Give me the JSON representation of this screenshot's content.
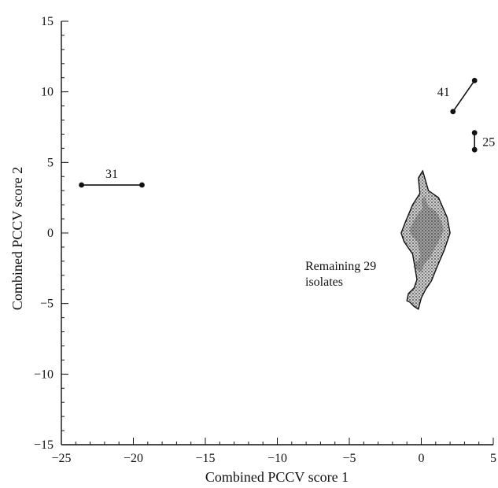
{
  "chart_data": {
    "type": "scatter",
    "title": "",
    "xlabel": "Combined PCCV score 1",
    "ylabel": "Combined PCCV score 2",
    "xlim": [
      -25,
      5
    ],
    "ylim": [
      -15,
      15
    ],
    "xticks": [
      -25,
      -20,
      -15,
      -10,
      -5,
      0,
      5
    ],
    "yticks": [
      -15,
      -10,
      -5,
      0,
      5,
      10,
      15
    ],
    "xtick_labels": [
      "−25",
      "−20",
      "−15",
      "−10",
      "−5",
      "0",
      "5"
    ],
    "ytick_labels": [
      "15",
      "10",
      "5",
      "0",
      "−5",
      "−10",
      "−15"
    ],
    "grid": false,
    "segments": [
      {
        "label": "31",
        "points": [
          [
            -23.6,
            3.4
          ],
          [
            -19.4,
            3.4
          ]
        ]
      },
      {
        "label": "41",
        "points": [
          [
            2.2,
            8.6
          ],
          [
            3.7,
            10.8
          ]
        ]
      },
      {
        "label": "25",
        "points": [
          [
            3.7,
            7.1
          ],
          [
            3.7,
            5.9
          ]
        ]
      }
    ],
    "cluster": {
      "label_line1": "Remaining 29",
      "label_line2": "isolates",
      "outline": [
        [
          0.1,
          4.4
        ],
        [
          0.5,
          3.0
        ],
        [
          1.2,
          2.5
        ],
        [
          1.8,
          1.1
        ],
        [
          2.0,
          0.0
        ],
        [
          1.6,
          -1.2
        ],
        [
          1.1,
          -2.4
        ],
        [
          0.7,
          -3.4
        ],
        [
          0.3,
          -4.0
        ],
        [
          0.0,
          -4.6
        ],
        [
          -0.2,
          -5.4
        ],
        [
          -0.5,
          -5.2
        ],
        [
          -0.8,
          -4.9
        ],
        [
          -1.0,
          -4.8
        ],
        [
          -0.9,
          -4.3
        ],
        [
          -0.5,
          -3.9
        ],
        [
          -0.3,
          -3.3
        ],
        [
          -0.6,
          -1.5
        ],
        [
          -1.2,
          -0.6
        ],
        [
          -1.4,
          0.0
        ],
        [
          -1.1,
          0.8
        ],
        [
          -0.6,
          2.0
        ],
        [
          -0.1,
          2.8
        ],
        [
          -0.2,
          3.9
        ]
      ]
    }
  }
}
